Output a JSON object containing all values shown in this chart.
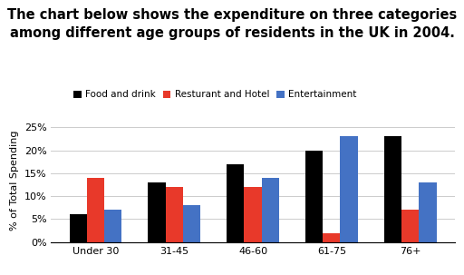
{
  "title_line1": "The chart below shows the expenditure on three categories",
  "title_line2": "among different age groups of residents in the UK in 2004.",
  "categories": [
    "Under 30",
    "31-45",
    "46-60",
    "61-75",
    "76+"
  ],
  "series": [
    {
      "name": "Food and drink",
      "color": "#000000",
      "values": [
        6,
        13,
        17,
        20,
        23
      ]
    },
    {
      "name": "Resturant and Hotel",
      "color": "#e8392a",
      "values": [
        14,
        12,
        12,
        2,
        7
      ]
    },
    {
      "name": "Entertainment",
      "color": "#4472c4",
      "values": [
        7,
        8,
        14,
        23,
        13
      ]
    }
  ],
  "ylabel": "% of Total Spending",
  "ylim": [
    0,
    27
  ],
  "yticks": [
    0,
    5,
    10,
    15,
    20,
    25
  ],
  "ytick_labels": [
    "0%",
    "5%",
    "10%",
    "15%",
    "20%",
    "25%"
  ],
  "bar_width": 0.22,
  "title_fontsize": 10.5,
  "axis_fontsize": 8,
  "legend_fontsize": 7.5,
  "ylabel_fontsize": 8,
  "background_color": "#ffffff"
}
